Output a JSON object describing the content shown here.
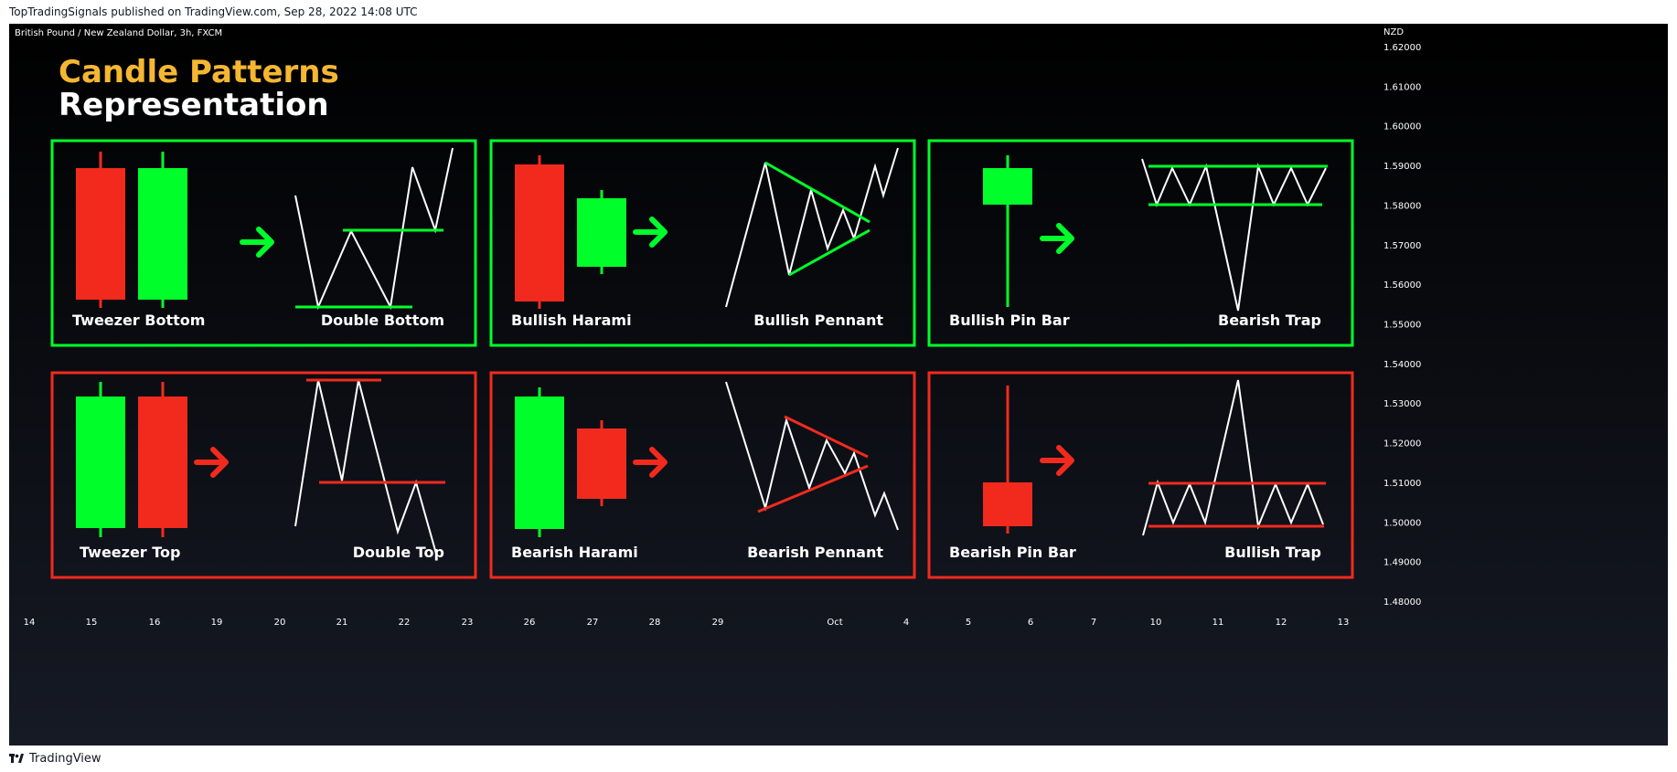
{
  "header": {
    "published_line": "TopTradingSignals published on TradingView.com, Sep 28, 2022 14:08 UTC"
  },
  "chart": {
    "symbol_line": "British Pound / New Zealand Dollar, 3h, FXCM",
    "currency": "NZD",
    "title_line1": "Candle Patterns",
    "title_line2": "Representation",
    "colors": {
      "background_top": "#000000",
      "background_bottom": "#161a25",
      "bullish": "#00ff2a",
      "bearish": "#f22a1e",
      "title_accent": "#f5b731",
      "line": "#ffffff"
    }
  },
  "chart_data": {
    "type": "other",
    "y_axis": {
      "ticks": [
        "1.62000",
        "1.61000",
        "1.60000",
        "1.59000",
        "1.58000",
        "1.57000",
        "1.56000",
        "1.55000",
        "1.54000",
        "1.53000",
        "1.52000",
        "1.51000",
        "1.50000",
        "1.49000",
        "1.48000"
      ],
      "range": [
        1.476,
        1.624
      ]
    },
    "x_axis": {
      "ticks": [
        "14",
        "15",
        "16",
        "19",
        "20",
        "21",
        "22",
        "23",
        "26",
        "27",
        "28",
        "29",
        "Oct",
        "4",
        "5",
        "6",
        "7",
        "10",
        "11",
        "12",
        "13"
      ]
    },
    "panels": [
      {
        "row": 0,
        "col": 0,
        "type": "bullish",
        "left_label": "Tweezer Bottom",
        "right_label": "Double Bottom",
        "left_pattern": "tweezer-bottom",
        "right_pattern": "double-bottom"
      },
      {
        "row": 0,
        "col": 1,
        "type": "bullish",
        "left_label": "Bullish Harami",
        "right_label": "Bullish Pennant",
        "left_pattern": "bullish-harami",
        "right_pattern": "bullish-pennant"
      },
      {
        "row": 0,
        "col": 2,
        "type": "bullish",
        "left_label": "Bullish Pin Bar",
        "right_label": "Bearish Trap",
        "left_pattern": "bullish-pin-bar",
        "right_pattern": "bearish-trap"
      },
      {
        "row": 1,
        "col": 0,
        "type": "bearish",
        "left_label": "Tweezer Top",
        "right_label": "Double Top",
        "left_pattern": "tweezer-top",
        "right_pattern": "double-top"
      },
      {
        "row": 1,
        "col": 1,
        "type": "bearish",
        "left_label": "Bearish Harami",
        "right_label": "Bearish Pennant",
        "left_pattern": "bearish-harami",
        "right_pattern": "bearish-pennant"
      },
      {
        "row": 1,
        "col": 2,
        "type": "bearish",
        "left_label": "Bearish Pin Bar",
        "right_label": "Bullish Trap",
        "left_pattern": "bearish-pin-bar",
        "right_pattern": "bullish-trap"
      }
    ]
  },
  "footer": {
    "brand": "TradingView",
    "logo_icon": "tradingview-logo-icon"
  }
}
